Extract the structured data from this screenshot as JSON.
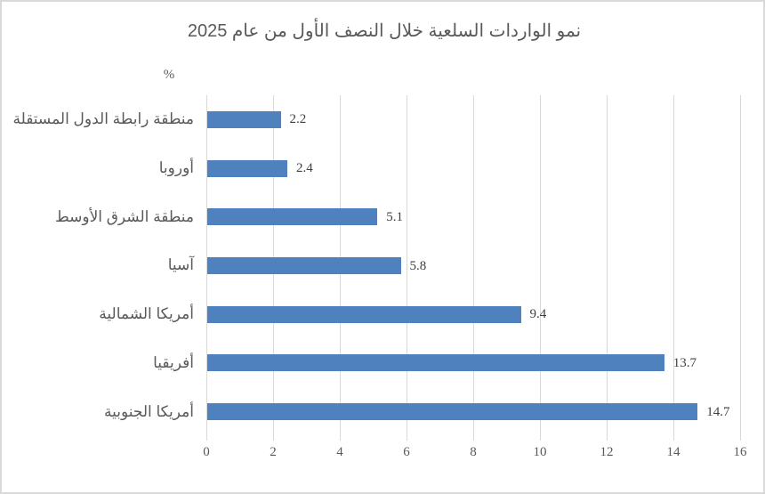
{
  "window": {
    "background": "#FFFFFF",
    "border_color": "#D9D9D9"
  },
  "chart_data": {
    "type": "bar",
    "orientation": "horizontal",
    "title": "نمو الواردات السلعية خلال النصف الأول من عام 2025",
    "unit_label": "%",
    "categories": [
      "منطقة رابطة الدول المستقلة",
      "أوروبا",
      "منطقة الشرق الأوسط",
      "آسيا",
      "أمريكا الشمالية",
      "أفريقيا",
      "أمريكا الجنوبية"
    ],
    "values": [
      2.2,
      2.4,
      5.1,
      5.8,
      9.4,
      13.7,
      14.7
    ],
    "value_labels": [
      "2.2",
      "2.4",
      "5.1",
      "5.8",
      "9.4",
      "13.7",
      "14.7"
    ],
    "xlim": [
      0,
      16
    ],
    "x_ticks": [
      0,
      2,
      4,
      6,
      8,
      10,
      12,
      14,
      16
    ],
    "grid": true,
    "legend": "none",
    "bar_color": "#4E81BD",
    "gridline_color": "#D9D9D9",
    "title_color": "#595959",
    "axis_label_color": "#595959",
    "value_label_color": "#404040"
  }
}
